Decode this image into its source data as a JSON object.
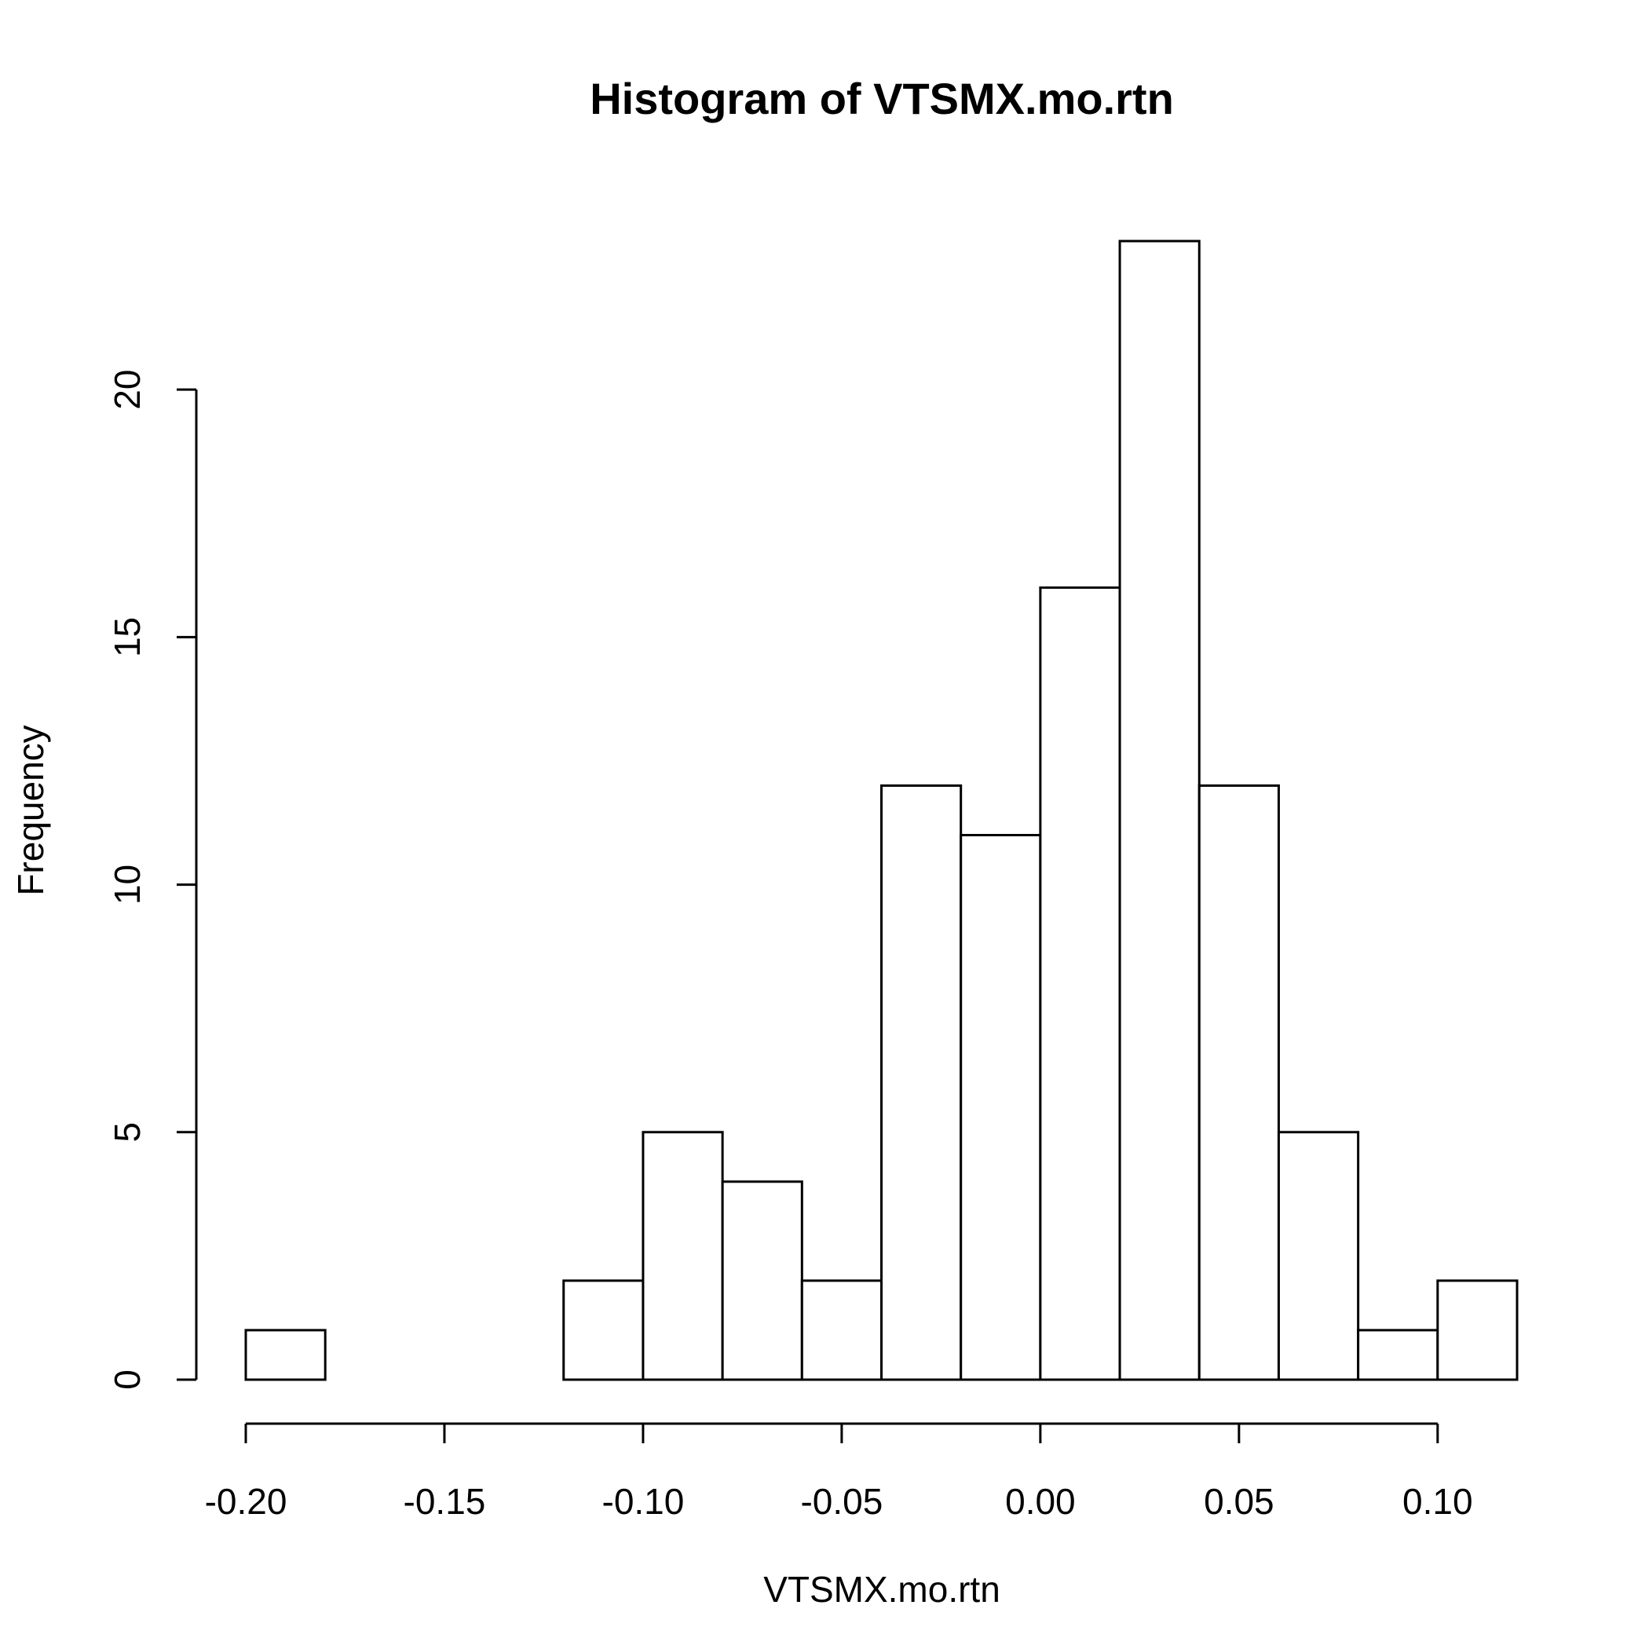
{
  "chart_data": {
    "type": "bar",
    "title": "Histogram of VTSMX.mo.rtn",
    "xlabel": "VTSMX.mo.rtn",
    "ylabel": "Frequency",
    "bins": [
      {
        "from": -0.2,
        "to": -0.18,
        "count": 1
      },
      {
        "from": -0.18,
        "to": -0.16,
        "count": 0
      },
      {
        "from": -0.16,
        "to": -0.14,
        "count": 0
      },
      {
        "from": -0.14,
        "to": -0.12,
        "count": 0
      },
      {
        "from": -0.12,
        "to": -0.1,
        "count": 2
      },
      {
        "from": -0.1,
        "to": -0.08,
        "count": 5
      },
      {
        "from": -0.08,
        "to": -0.06,
        "count": 4
      },
      {
        "from": -0.06,
        "to": -0.04,
        "count": 2
      },
      {
        "from": -0.04,
        "to": -0.02,
        "count": 12
      },
      {
        "from": -0.02,
        "to": 0.0,
        "count": 11
      },
      {
        "from": 0.0,
        "to": 0.02,
        "count": 16
      },
      {
        "from": 0.02,
        "to": 0.04,
        "count": 23
      },
      {
        "from": 0.04,
        "to": 0.06,
        "count": 12
      },
      {
        "from": 0.06,
        "to": 0.08,
        "count": 5
      },
      {
        "from": 0.08,
        "to": 0.1,
        "count": 1
      },
      {
        "from": 0.1,
        "to": 0.12,
        "count": 2
      }
    ],
    "xlim": [
      -0.2,
      0.12
    ],
    "ylim": [
      0,
      23
    ],
    "x_ticks": [
      -0.2,
      -0.15,
      -0.1,
      -0.05,
      0.0,
      0.05,
      0.1
    ],
    "x_tick_labels": [
      "-0.20",
      "-0.15",
      "-0.10",
      "-0.05",
      "0.00",
      "0.05",
      "0.10"
    ],
    "y_ticks": [
      0,
      5,
      10,
      15,
      20
    ],
    "y_tick_labels": [
      "0",
      "5",
      "10",
      "15",
      "20"
    ],
    "grid": false,
    "legend": "none"
  }
}
